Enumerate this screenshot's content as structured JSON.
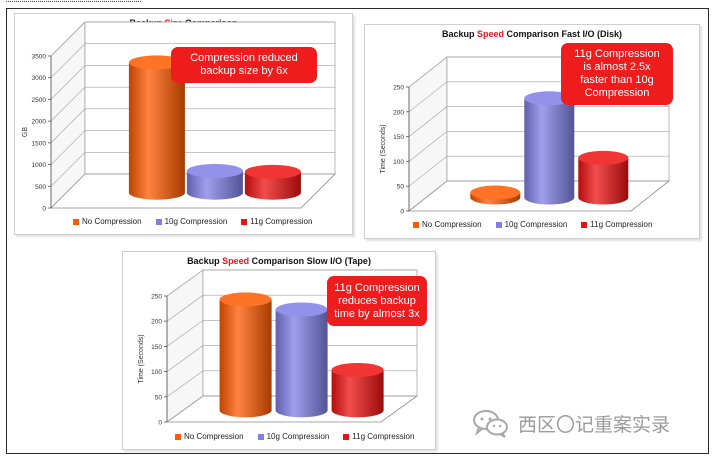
{
  "colors": {
    "no_compression": "#ff5a00",
    "g10_compression": "#7f7fe6",
    "g11_compression": "#ee1111",
    "callout_bg": "#ee1c1c"
  },
  "legend_labels": [
    "No Compression",
    "10g Compression",
    "11g Compression"
  ],
  "charts": [
    {
      "title_pre": "Backup ",
      "title_hl": "Size",
      "title_post": " Comparison",
      "ylabel": "GB",
      "callout": "Compression reduced\nbackup size by 6x",
      "ticks": [
        "0",
        "500",
        "1000",
        "1500",
        "2000",
        "2500",
        "3000",
        "3500"
      ]
    },
    {
      "title_pre": "Backup ",
      "title_hl": "Speed",
      "title_post": " Comparison Fast I/O (Disk)",
      "ylabel": "Time (Seconds)",
      "callout": "11g Compression\nis almost 2.5x\nfaster than 10g\nCompression",
      "ticks": [
        "0",
        "50",
        "100",
        "150",
        "200",
        "250"
      ]
    },
    {
      "title_pre": "Backup ",
      "title_hl": "Speed",
      "title_post": " Comparison Slow I/O (Tape)",
      "ylabel": "Time (Seconds)",
      "callout": "11g Compression\nreduces backup\ntime by almost 3x",
      "ticks": [
        "0",
        "50",
        "100",
        "150",
        "200",
        "250"
      ]
    }
  ],
  "chart_data": [
    {
      "type": "bar",
      "categories": [
        "No Compression",
        "10g Compression",
        "11g Compression"
      ],
      "values": [
        3000,
        500,
        480
      ],
      "ylabel": "GB",
      "ylim": [
        0,
        3500
      ]
    },
    {
      "type": "bar",
      "categories": [
        "No Compression",
        "10g Compression",
        "11g Compression"
      ],
      "values": [
        10,
        200,
        80
      ],
      "ylabel": "Time (Seconds)",
      "ylim": [
        0,
        250
      ]
    },
    {
      "type": "bar",
      "categories": [
        "No Compression",
        "10g Compression",
        "11g Compression"
      ],
      "values": [
        220,
        200,
        80
      ],
      "ylabel": "Time (Seconds)",
      "ylim": [
        0,
        250
      ]
    }
  ],
  "watermark": {
    "text": "西区〇记重案实录"
  }
}
